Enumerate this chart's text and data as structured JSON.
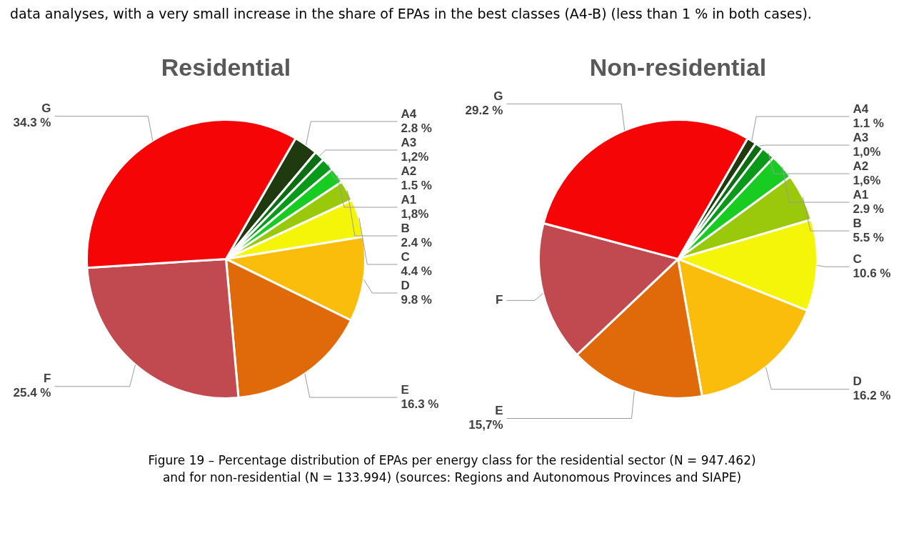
{
  "chart_data": [
    {
      "type": "pie",
      "title": "Residential",
      "categories": [
        "A4",
        "A3",
        "A2",
        "A1",
        "B",
        "C",
        "D",
        "E",
        "F",
        "G"
      ],
      "values": [
        2.8,
        1.2,
        1.5,
        1.8,
        2.4,
        4.4,
        9.8,
        16.3,
        25.4,
        34.3
      ],
      "value_labels": [
        "2.8 %",
        "1,2%",
        "1.5 %",
        "1,8%",
        "2.4 %",
        "4.4 %",
        "9.8 %",
        "16.3 %",
        "25.4 %",
        "34.3 %"
      ],
      "colors": [
        "#1f3a0f",
        "#0b6e12",
        "#0a9a1a",
        "#18cc22",
        "#99c90a",
        "#f5f50a",
        "#fbbd0c",
        "#e06a0a",
        "#c04a50",
        "#f50505"
      ],
      "annotations": [
        "data analyses, with a very small increase in the share of EPAs in the best classes (A4-B) (less than 1 % in both cases)."
      ]
    },
    {
      "type": "pie",
      "title": "Non-residential",
      "categories": [
        "A4",
        "A3",
        "A2",
        "A1",
        "B",
        "C",
        "D",
        "E",
        "F",
        "G"
      ],
      "values": [
        1.1,
        1.0,
        1.6,
        2.9,
        5.5,
        10.6,
        16.2,
        15.7,
        16.2,
        29.2
      ],
      "value_labels": [
        "1.1 %",
        "1,0%",
        "1,6%",
        "2.9 %",
        "5.5 %",
        "10.6 %",
        "16.2 %",
        "15,7%",
        null,
        "29.2 %"
      ],
      "colors": [
        "#1f3a0f",
        "#0b6e12",
        "#0a9a1a",
        "#18cc22",
        "#99c90a",
        "#f5f50a",
        "#fbbd0c",
        "#e06a0a",
        "#c04a50",
        "#f50505"
      ],
      "annotations": [
        "Figure 19 – Percentage distribution of EPAs per energy class for the residential sector (N = 947.462)",
        "and for non-residential (N = 133.994) (sources: Regions and Autonomous Provinces and SIAPE)"
      ]
    }
  ]
}
